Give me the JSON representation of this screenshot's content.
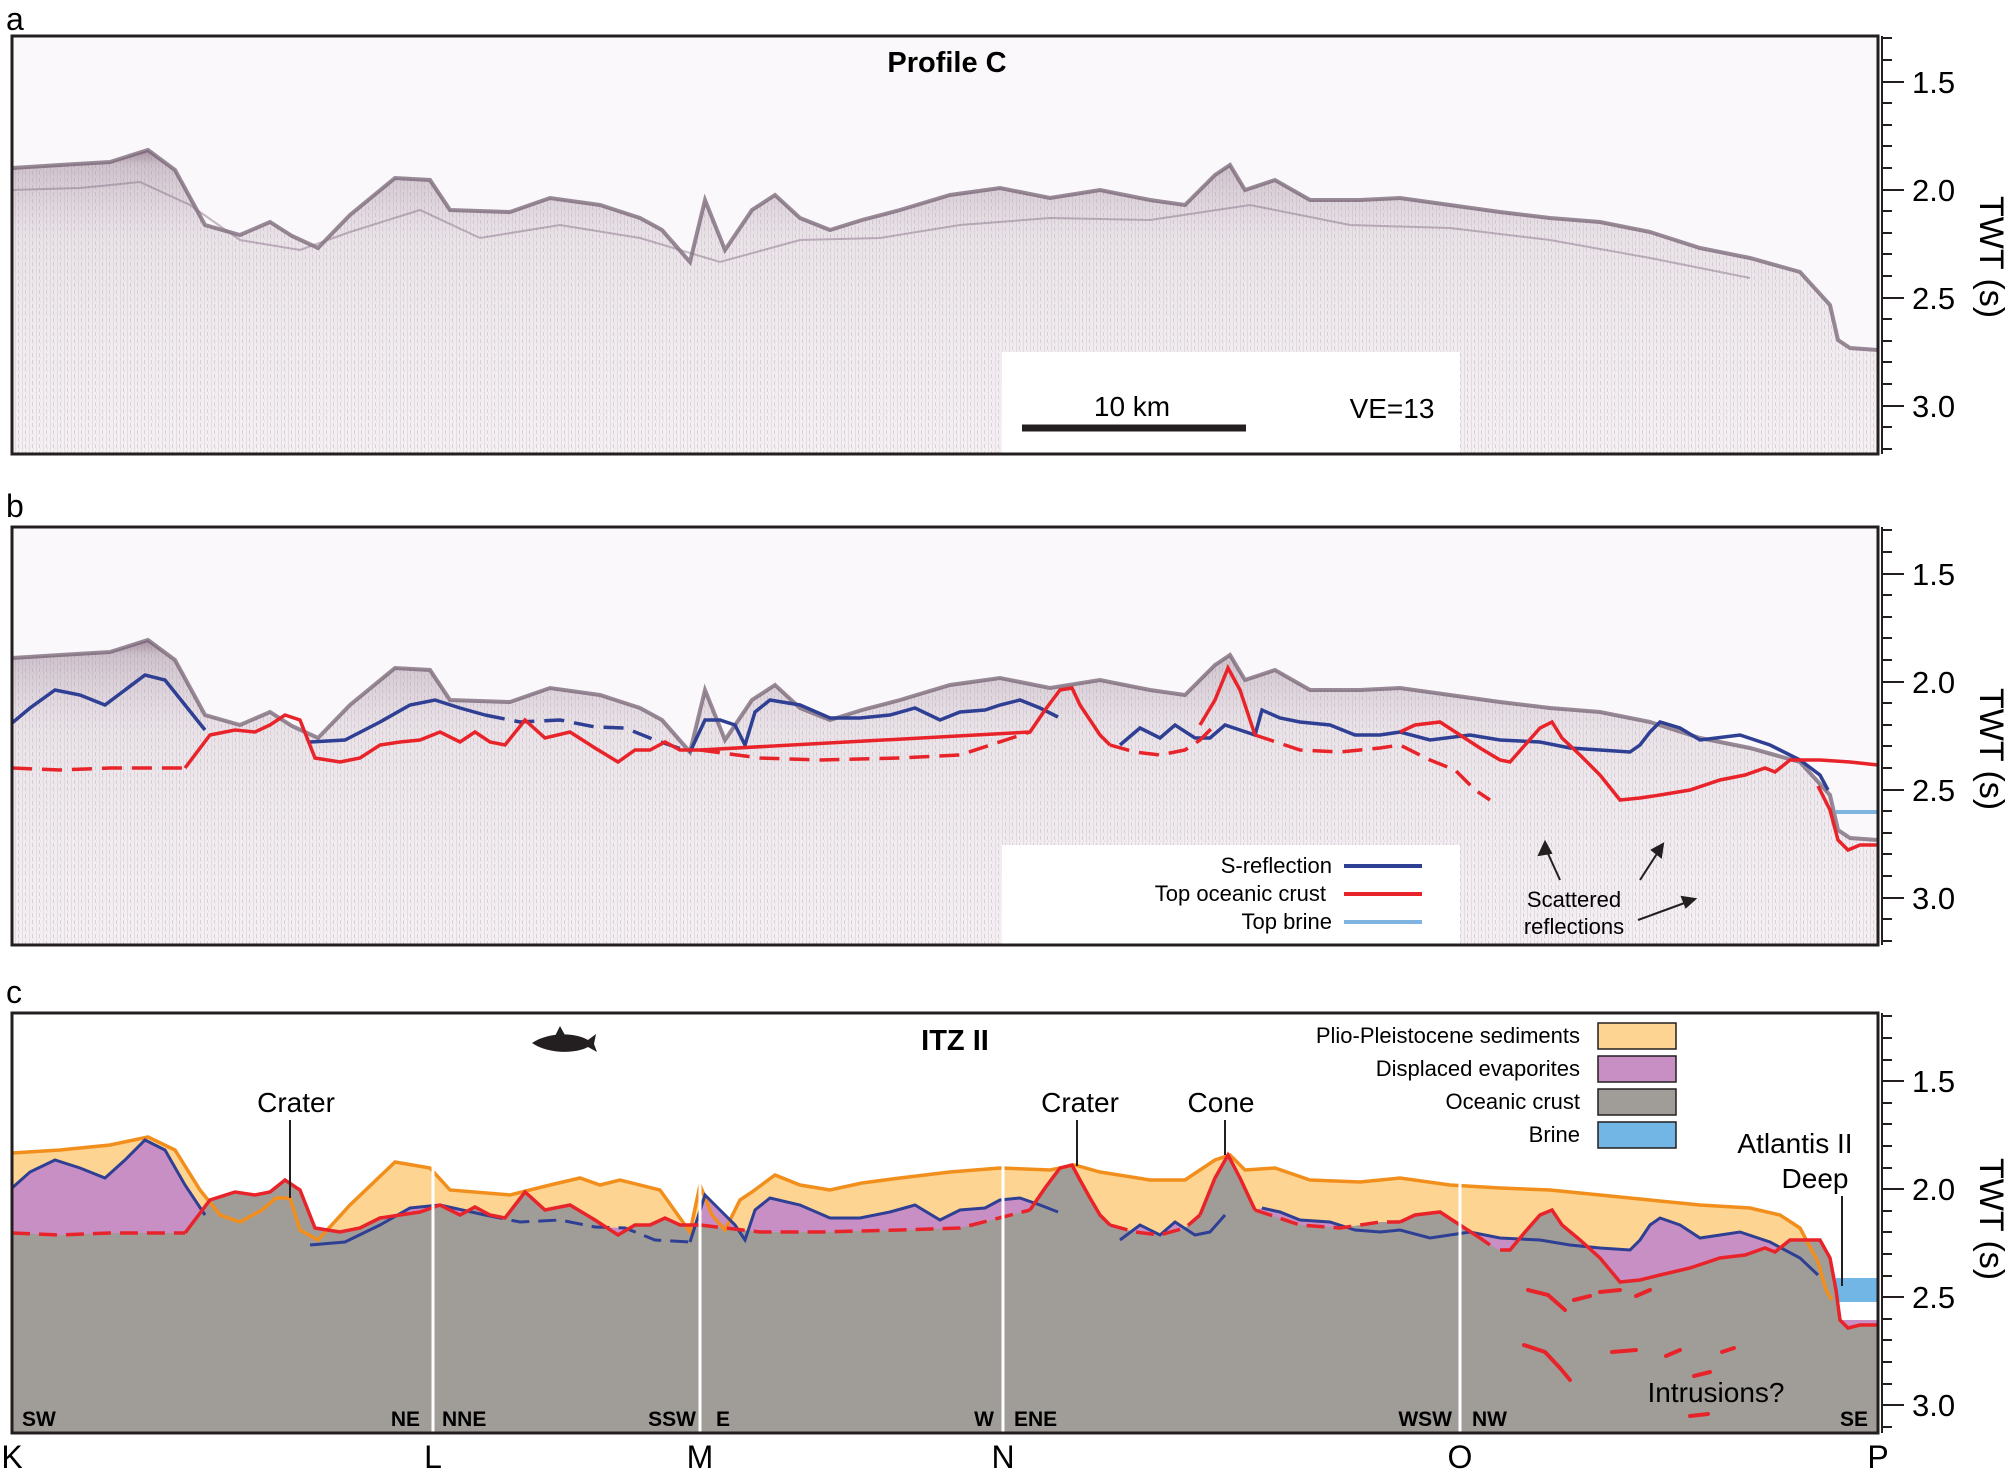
{
  "figure": {
    "panel_labels": [
      "a",
      "b",
      "c"
    ],
    "panel_a": {
      "title": "Profile C",
      "scale_bar_label": "10 km",
      "vertical_exaggeration": "VE=13"
    },
    "panel_b": {
      "legend": [
        {
          "label": "S-reflection",
          "color": "#2e3f94"
        },
        {
          "label": "Top oceanic crust",
          "color": "#e8242a"
        },
        {
          "label": "Top brine",
          "color": "#7fb4e0"
        }
      ],
      "annotation_line1": "Scattered",
      "annotation_line2": "reflections"
    },
    "panel_c": {
      "title": "ITZ II",
      "legend": [
        {
          "label": "Plio-Pleistocene sediments",
          "color": "#fdd491"
        },
        {
          "label": "Displaced evaporites",
          "color": "#c88fc4"
        },
        {
          "label": "Oceanic crust",
          "color": "#a09d99"
        },
        {
          "label": "Brine",
          "color": "#71b6e4"
        }
      ],
      "labels": {
        "crater_1": "Crater",
        "crater_2": "Crater",
        "cone": "Cone",
        "deep_line1": "Atlantis II",
        "deep_line2": "Deep",
        "intrusions": "Intrusions?"
      },
      "orientations": [
        "SW",
        "NE",
        "NNE",
        "SSW",
        "E",
        "W",
        "ENE",
        "WSW",
        "NW",
        "SE"
      ]
    },
    "axis": {
      "title": "TWT (s)",
      "ticks": [
        "1.5",
        "2.0",
        "2.5",
        "3.0"
      ]
    },
    "profile_points": [
      "K",
      "L",
      "M",
      "N",
      "O",
      "P"
    ],
    "colors": {
      "seabed_orange": "#f28e1c",
      "s_reflection": "#2e3f94",
      "top_crust": "#e8242a",
      "brine": "#7fb4e0",
      "seismic_tint": "#8a6f86"
    }
  }
}
